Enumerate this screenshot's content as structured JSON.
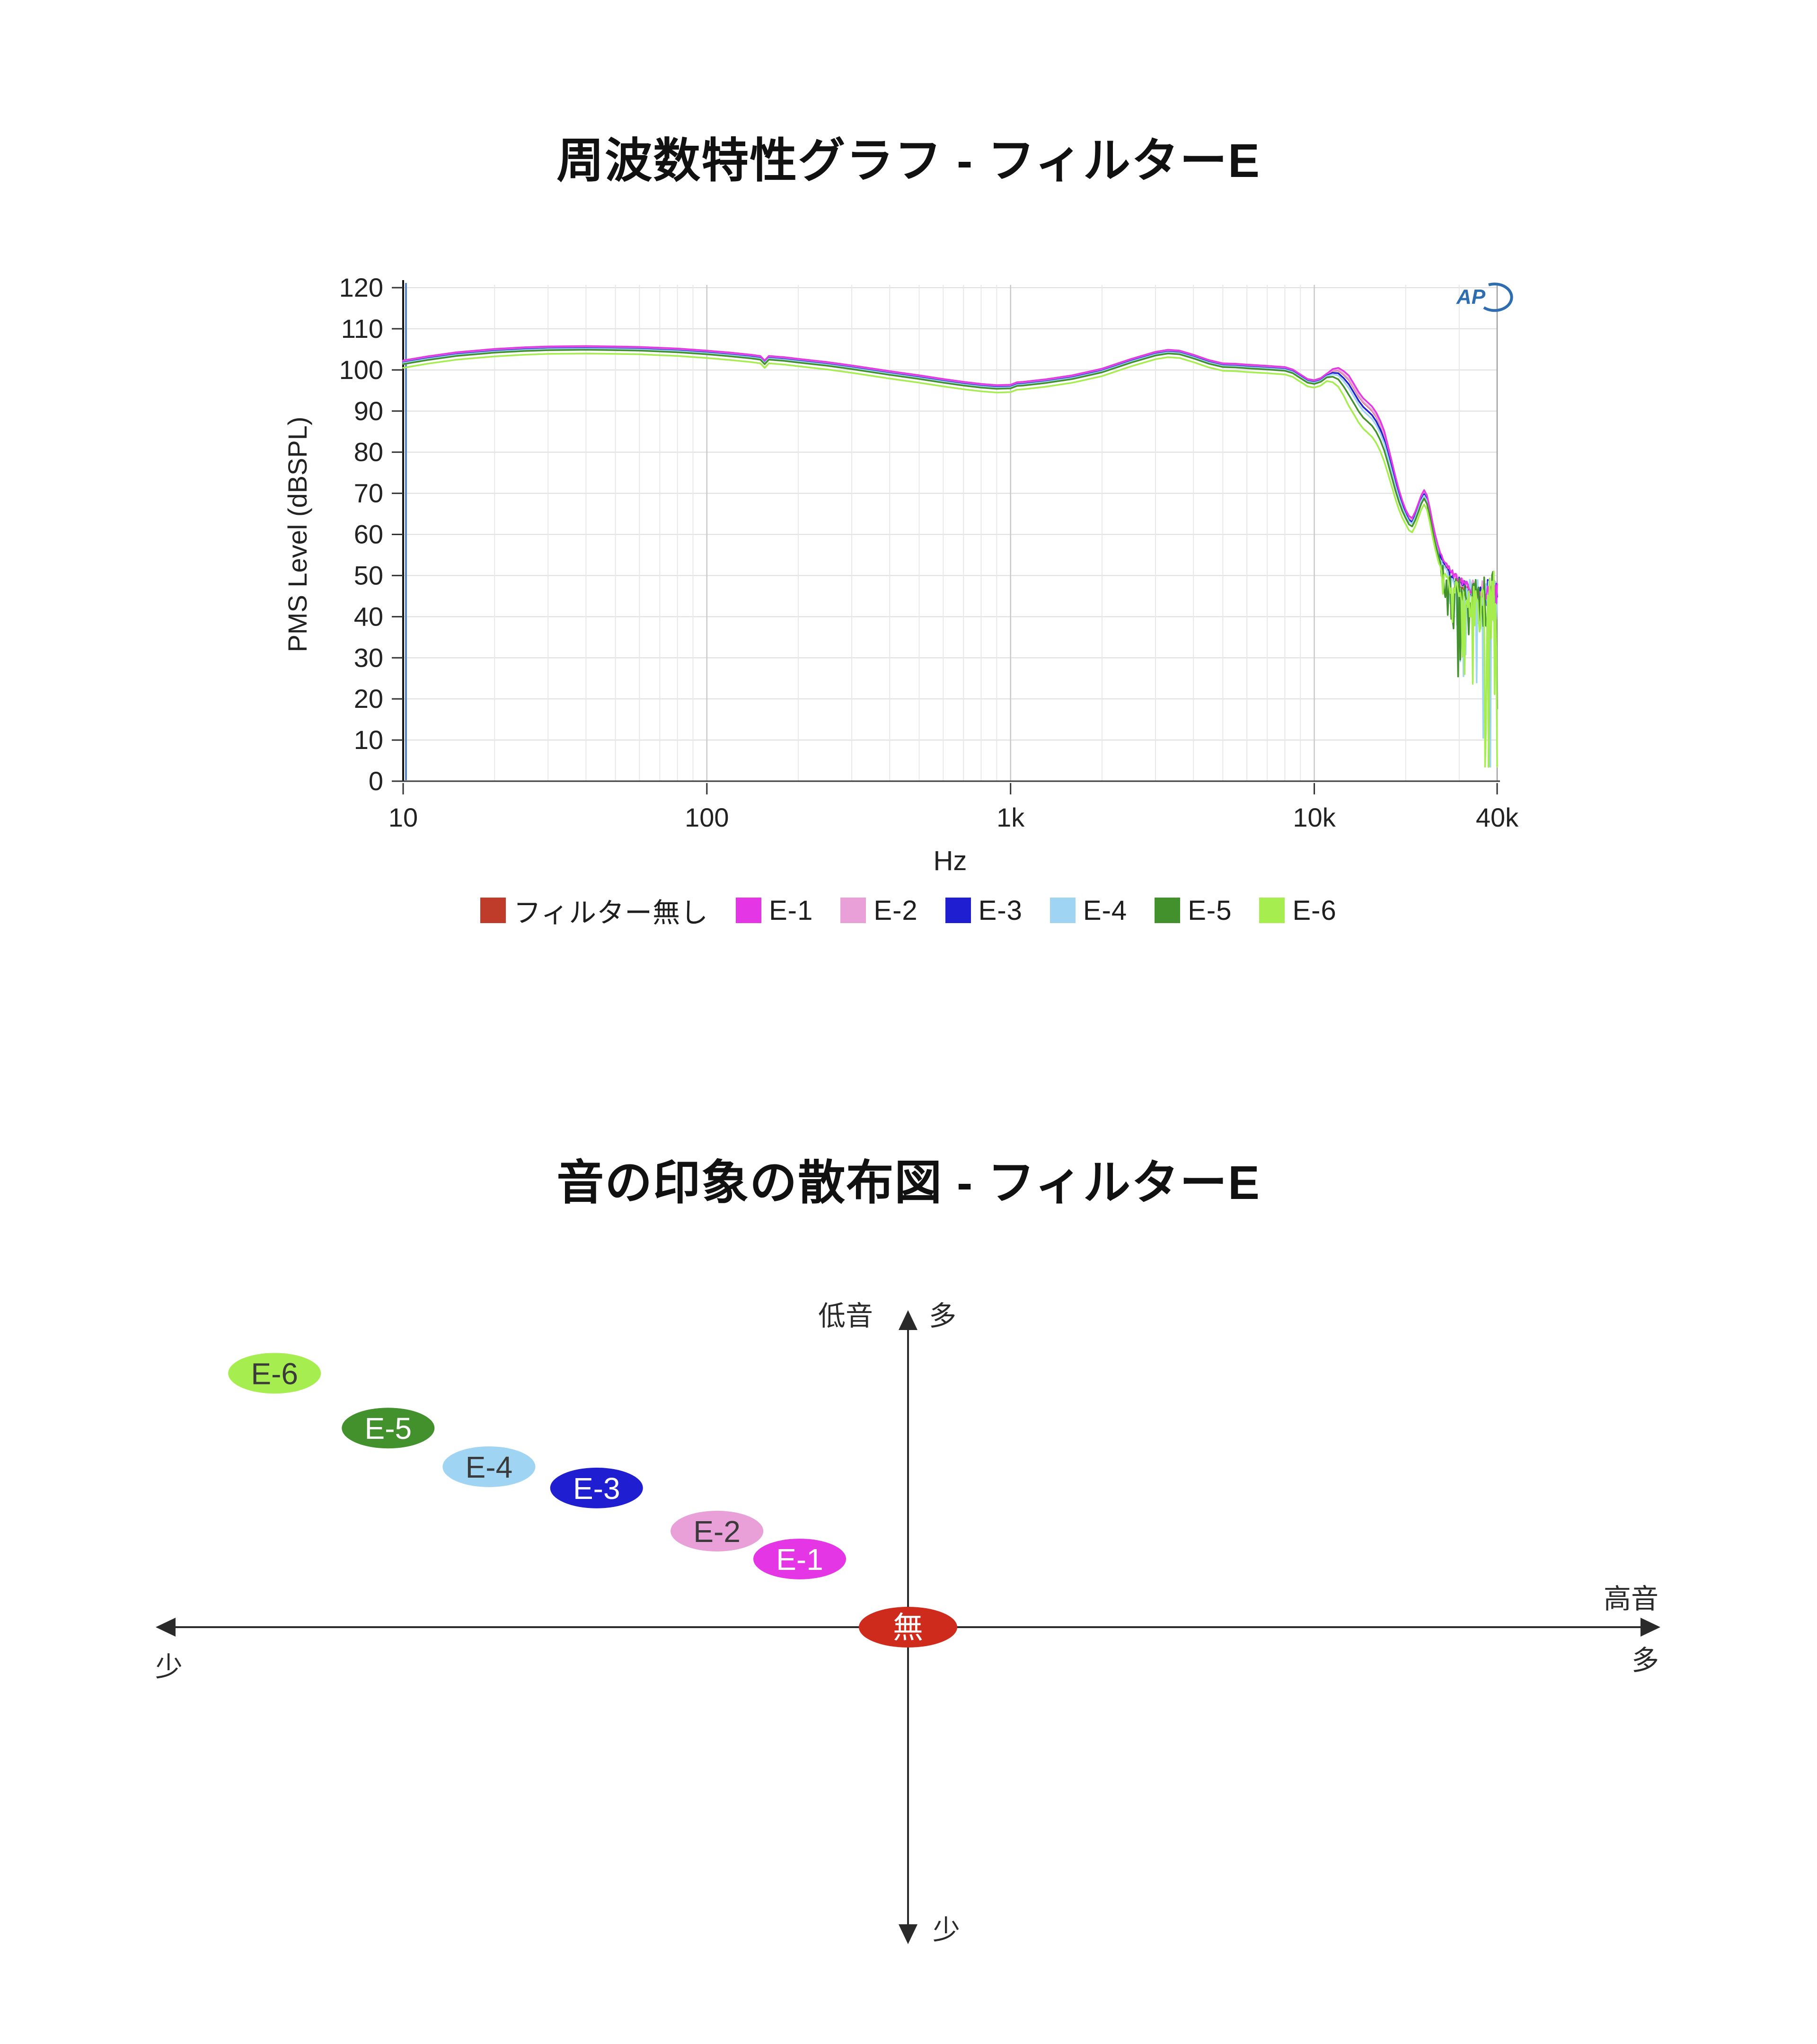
{
  "chart_data": [
    {
      "type": "line",
      "title": "周波数特性グラフ - フィルターE",
      "xlabel": "Hz",
      "ylabel": "PMS Level (dBSPL)",
      "x_scale": "log",
      "xlim": [
        10,
        40000
      ],
      "ylim": [
        0,
        120
      ],
      "y_tick_step": 10,
      "x_ticks": [
        [
          10,
          "10"
        ],
        [
          100,
          "100"
        ],
        [
          1000,
          "1k"
        ],
        [
          10000,
          "10k"
        ],
        [
          40000,
          "40k"
        ]
      ],
      "grid": true,
      "legend_position": "bottom",
      "watermark": "AP",
      "start_line_freq": 10,
      "base_curve": [
        [
          10,
          101.8
        ],
        [
          12,
          102.8
        ],
        [
          15,
          103.8
        ],
        [
          20,
          104.6
        ],
        [
          25,
          105.0
        ],
        [
          30,
          105.2
        ],
        [
          40,
          105.3
        ],
        [
          50,
          105.2
        ],
        [
          60,
          105.1
        ],
        [
          80,
          104.7
        ],
        [
          100,
          104.2
        ],
        [
          120,
          103.7
        ],
        [
          140,
          103.2
        ],
        [
          150,
          102.9
        ],
        [
          155,
          101.8
        ],
        [
          160,
          102.9
        ],
        [
          180,
          102.6
        ],
        [
          200,
          102.2
        ],
        [
          250,
          101.4
        ],
        [
          300,
          100.6
        ],
        [
          400,
          99.2
        ],
        [
          500,
          98.2
        ],
        [
          600,
          97.3
        ],
        [
          700,
          96.6
        ],
        [
          800,
          96.1
        ],
        [
          900,
          95.8
        ],
        [
          1000,
          95.9
        ],
        [
          1050,
          96.5
        ],
        [
          1100,
          96.6
        ],
        [
          1300,
          97.2
        ],
        [
          1600,
          98.2
        ],
        [
          2000,
          99.8
        ],
        [
          2500,
          102.2
        ],
        [
          3000,
          103.9
        ],
        [
          3300,
          104.4
        ],
        [
          3600,
          104.2
        ],
        [
          4000,
          103.2
        ],
        [
          4500,
          101.9
        ],
        [
          5000,
          101.1
        ],
        [
          5500,
          101.0
        ],
        [
          6000,
          100.8
        ],
        [
          7000,
          100.5
        ],
        [
          8000,
          100.2
        ],
        [
          8500,
          99.6
        ],
        [
          9000,
          98.4
        ],
        [
          9500,
          97.3
        ],
        [
          10000,
          97.0
        ],
        [
          10500,
          97.5
        ],
        [
          11000,
          98.6
        ],
        [
          11500,
          99.3
        ],
        [
          12000,
          99.2
        ],
        [
          12500,
          98.0
        ],
        [
          13000,
          96.5
        ],
        [
          13500,
          94.5
        ],
        [
          14000,
          92.5
        ],
        [
          14500,
          91.0
        ],
        [
          15000,
          90.0
        ],
        [
          15500,
          89.0
        ],
        [
          16000,
          87.5
        ],
        [
          16500,
          85.5
        ],
        [
          17000,
          83.0
        ],
        [
          17500,
          79.5
        ],
        [
          18000,
          76.0
        ],
        [
          18500,
          72.5
        ],
        [
          19000,
          69.5
        ],
        [
          19500,
          67.0
        ],
        [
          20000,
          65.0
        ],
        [
          20500,
          63.5
        ],
        [
          21000,
          63.0
        ],
        [
          21500,
          64.5
        ],
        [
          22000,
          66.5
        ],
        [
          22500,
          68.5
        ],
        [
          23000,
          69.8
        ],
        [
          23500,
          68.5
        ],
        [
          24000,
          65.5
        ],
        [
          24500,
          62.0
        ],
        [
          25000,
          59.0
        ],
        [
          25500,
          56.5
        ],
        [
          26000,
          54.5
        ],
        [
          27000,
          52.0
        ],
        [
          28000,
          50.5
        ],
        [
          29000,
          49.0
        ],
        [
          30000,
          48.0
        ],
        [
          31000,
          47.0
        ],
        [
          32000,
          46.5
        ],
        [
          33000,
          46.0
        ],
        [
          34000,
          45.5
        ],
        [
          35000,
          45.2
        ],
        [
          36000,
          45.0
        ],
        [
          37000,
          44.8
        ],
        [
          38000,
          45.0
        ],
        [
          39000,
          44.6
        ],
        [
          40000,
          44.0
        ]
      ],
      "series": [
        {
          "name": "フィルター無し",
          "color": "#bf3b2a",
          "offset": 0.3,
          "hf_bias": 0.8,
          "tail_spike": 0
        },
        {
          "name": "E-1",
          "color": "#e536e5",
          "offset": 0.5,
          "hf_bias": 1.6,
          "tail_spike": 0
        },
        {
          "name": "E-2",
          "color": "#e9a0d9",
          "offset": 0.35,
          "hf_bias": 0.9,
          "tail_spike": 0.2
        },
        {
          "name": "E-3",
          "color": "#1f1fd1",
          "offset": 0,
          "hf_bias": 0,
          "tail_spike": 0.3
        },
        {
          "name": "E-4",
          "color": "#9fd5f2",
          "offset": -0.15,
          "hf_bias": -0.8,
          "tail_spike": 0.5
        },
        {
          "name": "E-5",
          "color": "#43912c",
          "offset": -0.4,
          "hf_bias": -2.2,
          "tail_spike": 0.8
        },
        {
          "name": "E-6",
          "color": "#a6ee4f",
          "offset": -1.3,
          "hf_bias": -4.0,
          "tail_spike": 1.0
        }
      ]
    },
    {
      "type": "scatter",
      "title": "音の印象の散布図 - フィルターE",
      "x_axis": {
        "label": "高音",
        "max_label": "多",
        "min_label": "少"
      },
      "y_axis": {
        "label": "低音",
        "max_label": "多",
        "min_label": "少"
      },
      "points": [
        {
          "label": "無",
          "x": 0,
          "y": 0,
          "color": "#cf2b1d",
          "text_color": "#ffffff"
        },
        {
          "label": "E-1",
          "x": -0.144,
          "y": 0.215,
          "color": "#e536e5",
          "text_color": "#ffffff"
        },
        {
          "label": "E-2",
          "x": -0.254,
          "y": 0.303,
          "color": "#e9a0d9",
          "text_color": "#3a3a3a"
        },
        {
          "label": "E-3",
          "x": -0.414,
          "y": 0.439,
          "color": "#1f1fd1",
          "text_color": "#ffffff"
        },
        {
          "label": "E-4",
          "x": -0.557,
          "y": 0.506,
          "color": "#9fd5f2",
          "text_color": "#3a3a3a"
        },
        {
          "label": "E-5",
          "x": -0.691,
          "y": 0.628,
          "color": "#43912c",
          "text_color": "#ffffff"
        },
        {
          "label": "E-6",
          "x": -0.842,
          "y": 0.801,
          "color": "#a6ee4f",
          "text_color": "#3a3a3a"
        }
      ]
    }
  ]
}
